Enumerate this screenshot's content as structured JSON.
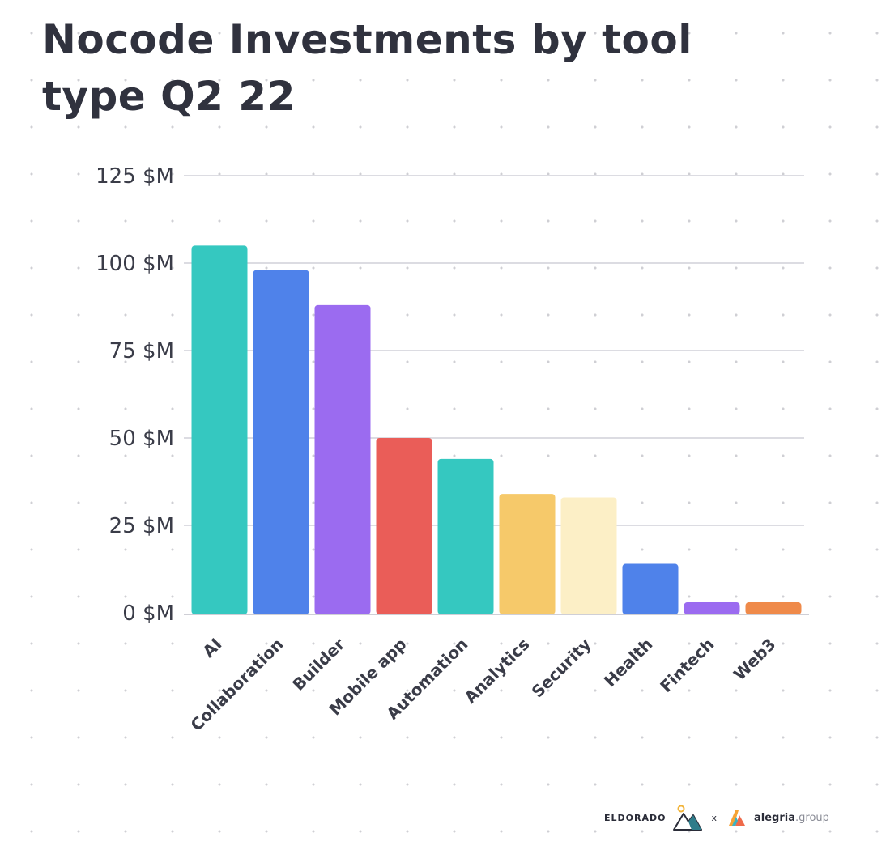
{
  "chart_data": {
    "type": "bar",
    "title": "Nocode Investments by tool type Q2 22",
    "categories": [
      "AI",
      "Collaboration",
      "Builder",
      "Mobile app",
      "Automation",
      "Analytics",
      "Security",
      "Health",
      "Fintech",
      "Web3"
    ],
    "values": [
      105,
      98,
      88,
      50,
      44,
      34,
      33,
      14,
      3,
      3
    ],
    "ytick_labels": [
      "0 $M",
      "25 $M",
      "50 $M",
      "75 $M",
      "100 $M",
      "125 $M"
    ],
    "yticks": [
      0,
      25,
      50,
      75,
      100,
      125
    ],
    "ylim": [
      0,
      125
    ],
    "grid": true,
    "legend": "none",
    "colors": [
      "#35c8c0",
      "#4f82ea",
      "#9b6bf0",
      "#ea5d58",
      "#35c8c0",
      "#f6c96a",
      "#fcefc6",
      "#4f82ea",
      "#9b6bf0",
      "#ef8a4a"
    ],
    "grid_color": "#dcdce2",
    "axis_color": "#cfcfd6"
  },
  "credits": {
    "brand1": "ELDORADO",
    "separator": "x",
    "brand2_main": "alegria",
    "brand2_suffix": ".group"
  }
}
